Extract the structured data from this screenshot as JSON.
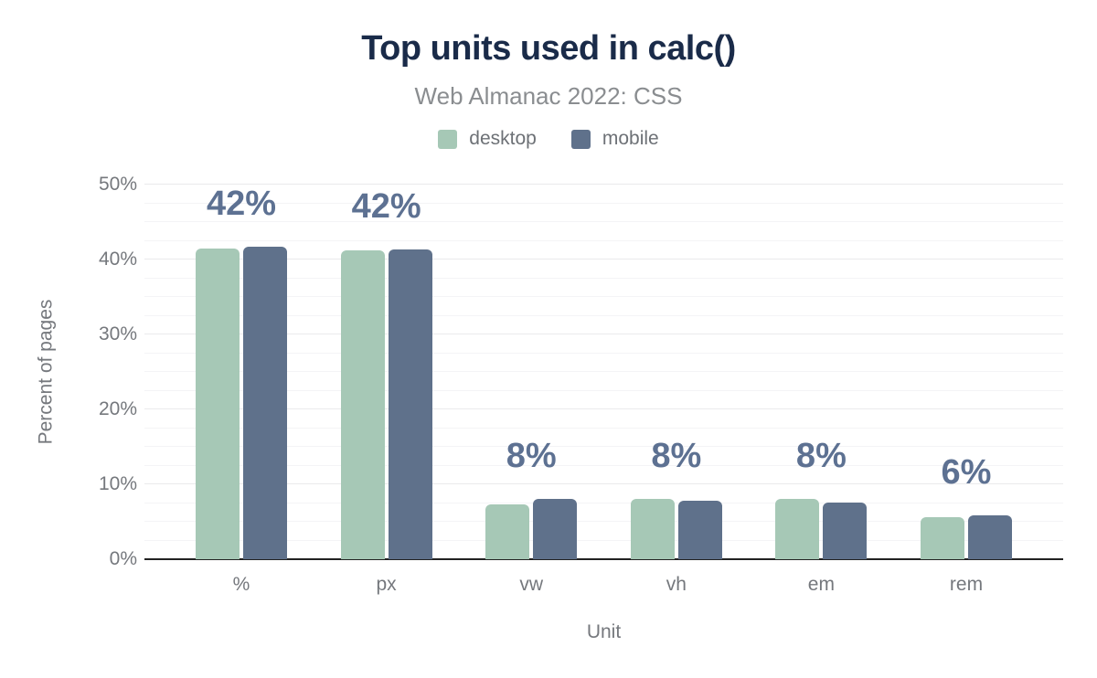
{
  "header": {
    "title": "Top units used in calc()",
    "subtitle": "Web Almanac 2022: CSS"
  },
  "legend": {
    "items": [
      {
        "label": "desktop",
        "color": "#a6c8b6"
      },
      {
        "label": "mobile",
        "color": "#5f718b"
      }
    ]
  },
  "chart_data": {
    "type": "bar",
    "title": "Top units used in calc()",
    "subtitle": "Web Almanac 2022: CSS",
    "categories": [
      "%",
      "px",
      "vw",
      "vh",
      "em",
      "rem"
    ],
    "series": [
      {
        "name": "desktop",
        "color": "#a6c8b6",
        "values": [
          41.5,
          41.2,
          7.3,
          8.1,
          8.0,
          5.6
        ]
      },
      {
        "name": "mobile",
        "color": "#5f718b",
        "values": [
          41.7,
          41.4,
          8.0,
          7.8,
          7.6,
          5.9
        ]
      }
    ],
    "bar_labels": [
      "42%",
      "42%",
      "8%",
      "8%",
      "8%",
      "6%"
    ],
    "xlabel": "Unit",
    "ylabel": "Percent of pages",
    "ylim": [
      0,
      50
    ],
    "ytick_step": 10,
    "minor_grid_step": 2.5,
    "ytick_suffix": "%",
    "grid": true,
    "legend_position": "top"
  },
  "colors": {
    "title_text": "#1a2b49",
    "subtitle_text": "#8a8d90",
    "legend_text": "#6d7176",
    "axis_text": "#75787d",
    "data_label": "#5d7192",
    "axis_line": "#222222",
    "grid_major": "#eaeaec",
    "grid_minor": "#f4f4f6",
    "background": "#ffffff"
  }
}
